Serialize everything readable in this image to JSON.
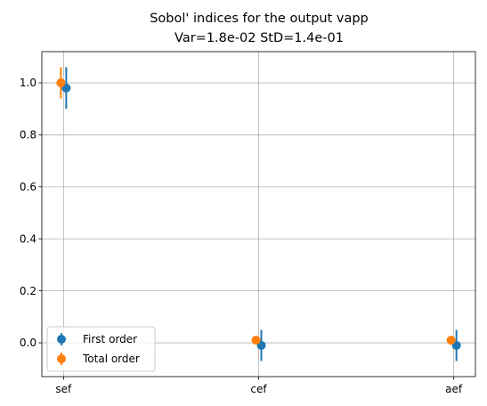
{
  "chart_data": {
    "type": "scatter",
    "title_lines": [
      "Sobol' indices for the output vapp",
      "Var=1.8e-02    StD=1.4e-01"
    ],
    "xlabel": "",
    "ylabel": "",
    "categories": [
      "sef",
      "cef",
      "aef"
    ],
    "ylim": [
      -0.13,
      1.12
    ],
    "yticks": [
      0.0,
      0.2,
      0.4,
      0.6,
      0.8,
      1.0
    ],
    "ytick_labels": [
      "0.0",
      "0.2",
      "0.4",
      "0.6",
      "0.8",
      "1.0"
    ],
    "grid": true,
    "legend_position": "lower-left",
    "series": [
      {
        "name": "First order",
        "color": "#1f77b4",
        "values": [
          0.98,
          -0.01,
          -0.01
        ],
        "lower": [
          0.9,
          -0.07,
          -0.07
        ],
        "upper": [
          1.06,
          0.05,
          0.05
        ]
      },
      {
        "name": "Total order",
        "color": "#ff7f0e",
        "values": [
          1.0,
          0.01,
          0.01
        ],
        "lower": [
          0.94,
          0.0,
          0.0
        ],
        "upper": [
          1.06,
          0.02,
          0.02
        ]
      }
    ]
  }
}
